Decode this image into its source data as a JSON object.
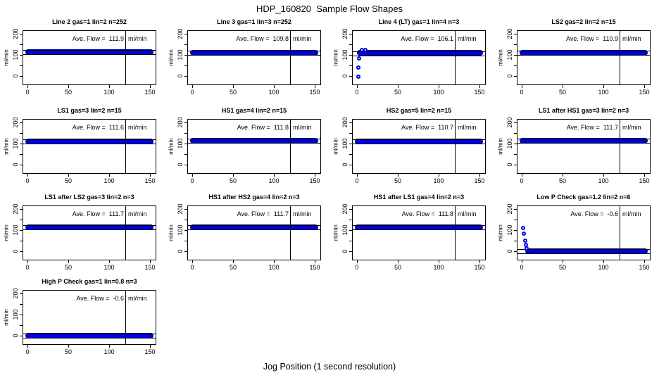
{
  "figure_title": "HDP_160820  Sample Flow Shapes",
  "x_axis_label": "Jog Position (1 second resolution)",
  "labels": {
    "ylabel": "ml/min",
    "avg_prefix": "Ave. Flow =  ",
    "avg_unit": "ml/min"
  },
  "colors": {
    "point_blue": "#0101e0",
    "point_blue_dark": "#00008b"
  },
  "axes": {
    "x_ticks": [
      0,
      50,
      100,
      150
    ],
    "y_ticks_all": [
      0,
      50,
      100,
      150,
      200
    ],
    "y_ticks_labeled": [
      0,
      100,
      200
    ],
    "xlim": [
      -6,
      157
    ],
    "ylim": [
      -43,
      217
    ],
    "marker_line_x": 120
  },
  "chart_data": [
    {
      "type": "scatter",
      "title": "Line 2 gas=1 lin=2 n=252",
      "avg_flow": 111.9,
      "band": {
        "x0": 0,
        "x1": 152,
        "y": 111.9
      },
      "ref_lines": [
        101.9,
        121.9
      ],
      "points": []
    },
    {
      "type": "scatter",
      "title": "Line 3 gas=1 lin=3 n=252",
      "avg_flow": 109.8,
      "band": {
        "x0": 0,
        "x1": 152,
        "y": 109.8
      },
      "ref_lines": [
        99.8,
        119.8
      ],
      "points": []
    },
    {
      "type": "scatter",
      "title": "Line 4 (LT) gas=1 lin=4 n=3",
      "avg_flow": 106.1,
      "band": {
        "x0": 3,
        "x1": 152,
        "y": 109
      },
      "ref_lines": [
        96.1,
        116.1
      ],
      "points": [
        [
          2,
          -2
        ],
        [
          2,
          40
        ],
        [
          2.5,
          84
        ],
        [
          6,
          123
        ],
        [
          10,
          122
        ]
      ]
    },
    {
      "type": "scatter",
      "title": "LS2 gas=2 lin=2 n=15",
      "avg_flow": 110.9,
      "band": {
        "x0": 0,
        "x1": 152,
        "y": 110.9
      },
      "ref_lines": [
        100.9,
        120.9
      ],
      "points": []
    },
    {
      "type": "scatter",
      "title": "LS1 gas=3 lin=2 n=15",
      "avg_flow": 111.6,
      "band": {
        "x0": 0,
        "x1": 152,
        "y": 111.6
      },
      "ref_lines": [
        101.6,
        121.6
      ],
      "points": []
    },
    {
      "type": "scatter",
      "title": "HS1 gas=4 lin=2 n=15",
      "avg_flow": 111.8,
      "band": {
        "x0": 0,
        "x1": 152,
        "y": 111.8
      },
      "ref_lines": [
        101.8,
        121.8
      ],
      "points": []
    },
    {
      "type": "scatter",
      "title": "HS2 gas=5 lin=2 n=15",
      "avg_flow": 110.7,
      "band": {
        "x0": 0,
        "x1": 152,
        "y": 110.7
      },
      "ref_lines": [
        100.7,
        120.7
      ],
      "points": []
    },
    {
      "type": "scatter",
      "title": "LS1 after HS1 gas=3 lin=2 n=3",
      "avg_flow": 111.7,
      "band": {
        "x0": 0,
        "x1": 152,
        "y": 111.7
      },
      "ref_lines": [
        101.7,
        121.7
      ],
      "points": []
    },
    {
      "type": "scatter",
      "title": "LS1 after LS2 gas=3 lin=2 n=3",
      "avg_flow": 111.7,
      "band": {
        "x0": 0,
        "x1": 152,
        "y": 111.7
      },
      "ref_lines": [
        101.7,
        121.7
      ],
      "points": []
    },
    {
      "type": "scatter",
      "title": "HS1 after HS2 gas=4 lin=2 n=3",
      "avg_flow": 111.7,
      "band": {
        "x0": 0,
        "x1": 152,
        "y": 111.7
      },
      "ref_lines": [
        101.7,
        121.7
      ],
      "points": []
    },
    {
      "type": "scatter",
      "title": "HS1 after LS1 gas=4 lin=2 n=3",
      "avg_flow": 111.8,
      "band": {
        "x0": 0,
        "x1": 152,
        "y": 111.8
      },
      "ref_lines": [
        101.8,
        121.8
      ],
      "points": []
    },
    {
      "type": "scatter",
      "title": "Low P Check gas=1.2 lin=2 n=6",
      "avg_flow": -0.6,
      "band": {
        "x0": 7,
        "x1": 152,
        "y": -0.6
      },
      "ref_lines": [
        -10.6,
        9.4
      ],
      "points": [
        [
          2,
          110
        ],
        [
          3,
          85
        ],
        [
          4,
          50
        ],
        [
          5,
          30
        ],
        [
          6,
          15
        ]
      ]
    },
    {
      "type": "scatter",
      "title": "High P Check gas=1 lin=0.8 n=3",
      "avg_flow": -0.6,
      "band": {
        "x0": 0,
        "x1": 152,
        "y": -0.6
      },
      "ref_lines": [
        -10.6,
        9.4
      ],
      "points": []
    }
  ]
}
